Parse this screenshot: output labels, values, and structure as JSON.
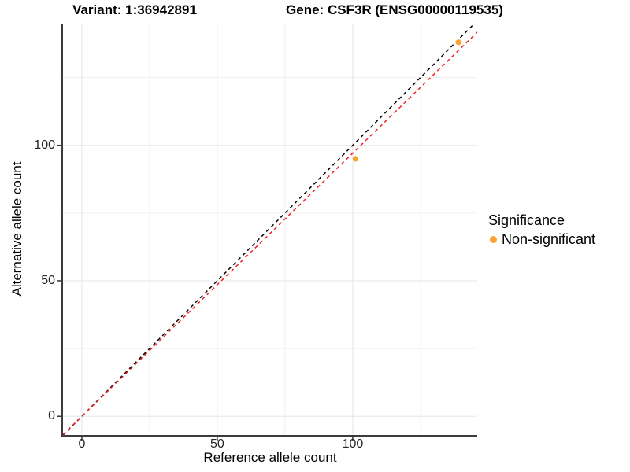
{
  "chart_data": {
    "type": "scatter",
    "titles": {
      "left": "Variant: 1:36942891",
      "right": "Gene: CSF3R (ENSG00000119535)"
    },
    "xlabel": "Reference allele count",
    "ylabel": "Alternative allele count",
    "xlim": [
      -6.95,
      145.95
    ],
    "ylim": [
      -6.9,
      144.9
    ],
    "x_ticks": [
      0,
      50,
      100
    ],
    "y_ticks": [
      0,
      50,
      100
    ],
    "x_minor_ticks": [
      25,
      75,
      125
    ],
    "y_minor_ticks": [
      25,
      75,
      125
    ],
    "points": [
      {
        "x": 101,
        "y": 95,
        "significance": "Non-significant"
      },
      {
        "x": 139,
        "y": 138,
        "significance": "Non-significant"
      }
    ],
    "point_radius": 3.6,
    "reference_lines": [
      {
        "name": "identity-line",
        "slope": 1,
        "intercept": 0,
        "color": "#000000",
        "style": "dashed"
      },
      {
        "name": "observed-ratio-line",
        "slope": 0.971,
        "intercept": 0,
        "color": "#EE2222",
        "style": "dashed"
      }
    ],
    "legend": {
      "title": "Significance",
      "position": "right",
      "items": [
        {
          "label": "Non-significant",
          "color": "#F9A332"
        }
      ]
    },
    "grid": {
      "major_color": "#E6E6E6",
      "minor_color": "#F1F1F1",
      "background": "#FFFFFF"
    },
    "axis_color": "#3C3C3C",
    "tick_color": "#333333",
    "text_color": "#262626"
  }
}
